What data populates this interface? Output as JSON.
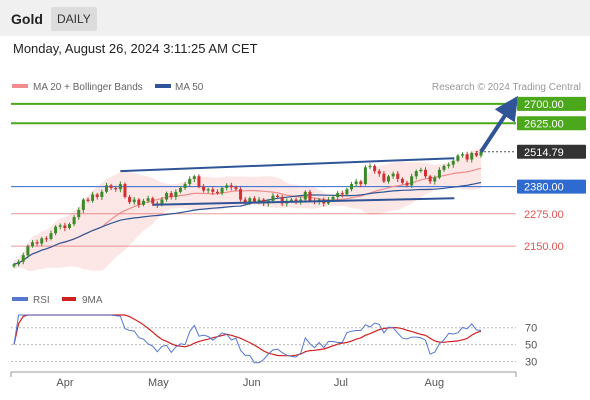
{
  "header": {
    "instrument": "Gold",
    "period_tab": "DAILY",
    "timestamp": "Monday, August 26, 2024 3:11:25 AM CET"
  },
  "colors": {
    "resistance": "#4aa81a",
    "pivot": "#2f6ad0",
    "support": "#e05555",
    "current_price": "#333333",
    "candle_up": "#3a8a2a",
    "candle_down": "#d03030",
    "ma20_band": "#f08c8c",
    "ma50": "#2f5597",
    "rsi": "#5577d0",
    "rsi_ma": "#d02020",
    "channel": "#2f5597",
    "arrow": "#2f5597"
  },
  "chart_data": [
    {
      "type": "candlestick",
      "legend": [
        {
          "label": "MA 20 + Bollinger Bands",
          "color": "#f08c8c"
        },
        {
          "label": "MA 50",
          "color": "#2f5597"
        }
      ],
      "source_note": "Research © 2024 Trading Central",
      "x_ticks": [
        "Apr",
        "May",
        "Jun",
        "Jul",
        "Aug"
      ],
      "key_levels": [
        {
          "value": 2700.0,
          "label": "2700.00",
          "kind": "resistance"
        },
        {
          "value": 2625.0,
          "label": "2625.00",
          "kind": "resistance"
        },
        {
          "value": 2514.79,
          "label": "2514.79",
          "kind": "current_price"
        },
        {
          "value": 2380.0,
          "label": "2380.00",
          "kind": "pivot"
        },
        {
          "value": 2275.0,
          "label": "2275.00",
          "kind": "support"
        },
        {
          "value": 2150.0,
          "label": "2150.00",
          "kind": "support"
        }
      ],
      "close_series": [
        2080,
        2090,
        2115,
        2150,
        2165,
        2160,
        2180,
        2178,
        2200,
        2225,
        2230,
        2220,
        2235,
        2262,
        2290,
        2330,
        2325,
        2350,
        2340,
        2360,
        2385,
        2375,
        2370,
        2390,
        2340,
        2320,
        2330,
        2310,
        2325,
        2335,
        2315,
        2310,
        2330,
        2355,
        2340,
        2360,
        2375,
        2390,
        2410,
        2420,
        2380,
        2365,
        2370,
        2360,
        2355,
        2375,
        2385,
        2378,
        2370,
        2330,
        2320,
        2335,
        2320,
        2330,
        2315,
        2325,
        2345,
        2340,
        2315,
        2325,
        2330,
        2320,
        2330,
        2360,
        2325,
        2320,
        2330,
        2315,
        2330,
        2340,
        2355,
        2350,
        2370,
        2390,
        2400,
        2390,
        2455,
        2460,
        2440,
        2430,
        2400,
        2420,
        2430,
        2410,
        2395,
        2385,
        2420,
        2440,
        2445,
        2420,
        2400,
        2415,
        2445,
        2460,
        2465,
        2480,
        2500,
        2505,
        2485,
        2510,
        2500,
        2514.79
      ],
      "channel_lines": [
        {
          "from": {
            "bar": 23,
            "value": 2440
          },
          "to": {
            "bar": 100,
            "value": 2490
          }
        },
        {
          "from": {
            "bar": 30,
            "value": 2310
          },
          "to": {
            "bar": 100,
            "value": 2335
          }
        }
      ],
      "forecast_arrow": {
        "from": {
          "bar": 101,
          "value": 2515
        },
        "to": {
          "bar": 108,
          "value": 2700
        }
      }
    },
    {
      "type": "line",
      "legend": [
        {
          "label": "RSI",
          "color": "#5577d0"
        },
        {
          "label": "9MA",
          "color": "#d02020"
        }
      ],
      "y_ticks": [
        "70",
        "50",
        "30"
      ],
      "y_tick_values": [
        70,
        50,
        30
      ],
      "ylim": [
        20,
        85
      ]
    }
  ]
}
